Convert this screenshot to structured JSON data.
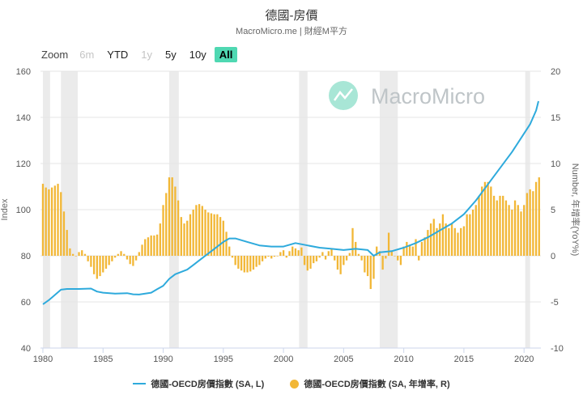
{
  "title": "德國-房價",
  "subtitle": "MacroMicro.me | 財經M平方",
  "watermark": "MacroMicro",
  "zoom": {
    "label": "Zoom",
    "buttons": [
      {
        "label": "6m",
        "state": "disabled"
      },
      {
        "label": "YTD",
        "state": "enabled"
      },
      {
        "label": "1y",
        "state": "disabled"
      },
      {
        "label": "5y",
        "state": "enabled"
      },
      {
        "label": "10y",
        "state": "enabled"
      },
      {
        "label": "All",
        "state": "active"
      }
    ]
  },
  "legend": {
    "line_label": "德國-OECD房價指數 (SA, L)",
    "bar_label": "德國-OECD房價指數 (SA, 年增率, R)"
  },
  "colors": {
    "line": "#2eaadc",
    "bars": "#f2b736",
    "band": "#ebebeb"
  },
  "chart_data": {
    "type": "bar+line",
    "x_axis": {
      "range": [
        1979.8,
        2021.4
      ],
      "ticks": [
        "1980",
        "1985",
        "1990",
        "1995",
        "2000",
        "2005",
        "2010",
        "2015",
        "2020"
      ]
    },
    "y_left": {
      "title": "Index",
      "range": [
        40,
        160
      ],
      "ticks": [
        40,
        60,
        80,
        100,
        120,
        140,
        160
      ]
    },
    "y_right": {
      "title": "Number, 年增率(YoY%)",
      "range": [
        -10,
        20
      ],
      "ticks": [
        -10,
        -5,
        0,
        5,
        10,
        15,
        20
      ]
    },
    "recession_bands": [
      [
        1980.0,
        1980.6
      ],
      [
        1981.5,
        1982.9
      ],
      [
        1990.5,
        1991.3
      ],
      [
        2001.3,
        2002.0
      ],
      [
        2008.0,
        2009.5
      ],
      [
        2020.1,
        2020.5
      ]
    ],
    "line_series": {
      "name": "德國-OECD房價指數 (SA, L)",
      "points": [
        [
          1980.0,
          59.0
        ],
        [
          1980.5,
          60.8
        ],
        [
          1981.0,
          63.0
        ],
        [
          1981.5,
          65.3
        ],
        [
          1982.0,
          65.6
        ],
        [
          1983.0,
          65.6
        ],
        [
          1984.0,
          65.8
        ],
        [
          1984.5,
          64.5
        ],
        [
          1985.0,
          64.0
        ],
        [
          1986.0,
          63.6
        ],
        [
          1987.0,
          63.8
        ],
        [
          1987.5,
          63.3
        ],
        [
          1988.0,
          63.2
        ],
        [
          1989.0,
          64.0
        ],
        [
          1989.5,
          65.5
        ],
        [
          1990.0,
          67.0
        ],
        [
          1990.5,
          70.0
        ],
        [
          1991.0,
          72.0
        ],
        [
          1992.0,
          74.0
        ],
        [
          1992.5,
          76.0
        ],
        [
          1993.0,
          78.0
        ],
        [
          1994.0,
          82.0
        ],
        [
          1995.0,
          86.0
        ],
        [
          1995.5,
          87.5
        ],
        [
          1996.0,
          87.5
        ],
        [
          1997.0,
          86.0
        ],
        [
          1998.0,
          84.5
        ],
        [
          1999.0,
          84.0
        ],
        [
          2000.0,
          84.0
        ],
        [
          2001.0,
          85.5
        ],
        [
          2002.0,
          84.5
        ],
        [
          2003.0,
          83.5
        ],
        [
          2004.0,
          83.0
        ],
        [
          2005.0,
          82.5
        ],
        [
          2006.0,
          83.0
        ],
        [
          2007.0,
          82.5
        ],
        [
          2007.5,
          80.0
        ],
        [
          2008.0,
          81.5
        ],
        [
          2009.0,
          82.0
        ],
        [
          2010.0,
          83.5
        ],
        [
          2011.0,
          85.5
        ],
        [
          2012.0,
          88.0
        ],
        [
          2013.0,
          91.0
        ],
        [
          2014.0,
          94.0
        ],
        [
          2015.0,
          98.0
        ],
        [
          2016.0,
          104.0
        ],
        [
          2017.0,
          111.0
        ],
        [
          2018.0,
          118.0
        ],
        [
          2019.0,
          125.0
        ],
        [
          2020.0,
          133.0
        ],
        [
          2020.5,
          137.0
        ],
        [
          2021.0,
          143.0
        ],
        [
          2021.2,
          147.0
        ]
      ]
    },
    "bar_series": {
      "name": "德國-OECD房價指數 (SA, 年增率, R)",
      "points": [
        [
          1980.0,
          7.8
        ],
        [
          1980.25,
          7.4
        ],
        [
          1980.5,
          7.2
        ],
        [
          1980.75,
          7.4
        ],
        [
          1981.0,
          7.6
        ],
        [
          1981.25,
          7.8
        ],
        [
          1981.5,
          6.9
        ],
        [
          1981.75,
          4.8
        ],
        [
          1982.0,
          2.8
        ],
        [
          1982.25,
          0.8
        ],
        [
          1982.5,
          0.2
        ],
        [
          1982.75,
          0.0
        ],
        [
          1983.0,
          0.4
        ],
        [
          1983.25,
          0.6
        ],
        [
          1983.5,
          0.2
        ],
        [
          1983.75,
          -0.6
        ],
        [
          1984.0,
          -1.2
        ],
        [
          1984.25,
          -2.0
        ],
        [
          1984.5,
          -2.5
        ],
        [
          1984.75,
          -2.2
        ],
        [
          1985.0,
          -1.8
        ],
        [
          1985.25,
          -1.4
        ],
        [
          1985.5,
          -1.0
        ],
        [
          1985.75,
          -0.6
        ],
        [
          1986.0,
          -0.2
        ],
        [
          1986.25,
          0.2
        ],
        [
          1986.5,
          0.5
        ],
        [
          1986.75,
          0.2
        ],
        [
          1987.0,
          -0.4
        ],
        [
          1987.25,
          -0.9
        ],
        [
          1987.5,
          -1.1
        ],
        [
          1987.75,
          -0.5
        ],
        [
          1988.0,
          0.4
        ],
        [
          1988.25,
          1.2
        ],
        [
          1988.5,
          1.8
        ],
        [
          1988.75,
          2.0
        ],
        [
          1989.0,
          2.2
        ],
        [
          1989.25,
          2.2
        ],
        [
          1989.5,
          2.3
        ],
        [
          1989.75,
          3.5
        ],
        [
          1990.0,
          5.5
        ],
        [
          1990.25,
          6.8
        ],
        [
          1990.5,
          8.5
        ],
        [
          1990.75,
          8.5
        ],
        [
          1991.0,
          7.5
        ],
        [
          1991.25,
          6.0
        ],
        [
          1991.5,
          4.2
        ],
        [
          1991.75,
          3.5
        ],
        [
          1992.0,
          3.8
        ],
        [
          1992.25,
          4.5
        ],
        [
          1992.5,
          5.0
        ],
        [
          1992.75,
          5.5
        ],
        [
          1993.0,
          5.6
        ],
        [
          1993.25,
          5.4
        ],
        [
          1993.5,
          5.0
        ],
        [
          1993.75,
          4.7
        ],
        [
          1994.0,
          4.6
        ],
        [
          1994.25,
          4.5
        ],
        [
          1994.5,
          4.5
        ],
        [
          1994.75,
          4.2
        ],
        [
          1995.0,
          3.8
        ],
        [
          1995.25,
          2.6
        ],
        [
          1995.5,
          1.0
        ],
        [
          1995.75,
          -0.2
        ],
        [
          1996.0,
          -1.0
        ],
        [
          1996.25,
          -1.4
        ],
        [
          1996.5,
          -1.6
        ],
        [
          1996.75,
          -1.8
        ],
        [
          1997.0,
          -1.8
        ],
        [
          1997.25,
          -1.7
        ],
        [
          1997.5,
          -1.5
        ],
        [
          1997.75,
          -1.2
        ],
        [
          1998.0,
          -1.0
        ],
        [
          1998.25,
          -0.6
        ],
        [
          1998.5,
          -0.3
        ],
        [
          1998.75,
          -0.1
        ],
        [
          1999.0,
          -0.3
        ],
        [
          1999.25,
          -0.1
        ],
        [
          1999.5,
          0.0
        ],
        [
          1999.75,
          0.4
        ],
        [
          2000.0,
          0.6
        ],
        [
          2000.25,
          -0.2
        ],
        [
          2000.5,
          0.5
        ],
        [
          2000.75,
          1.0
        ],
        [
          2001.0,
          0.8
        ],
        [
          2001.25,
          0.6
        ],
        [
          2001.5,
          0.9
        ],
        [
          2001.75,
          -1.0
        ],
        [
          2002.0,
          -1.6
        ],
        [
          2002.25,
          -1.4
        ],
        [
          2002.5,
          -0.8
        ],
        [
          2002.75,
          -0.6
        ],
        [
          2003.0,
          -0.2
        ],
        [
          2003.25,
          0.4
        ],
        [
          2003.5,
          -0.4
        ],
        [
          2003.75,
          0.5
        ],
        [
          2004.0,
          0.8
        ],
        [
          2004.25,
          -0.5
        ],
        [
          2004.5,
          -1.5
        ],
        [
          2004.75,
          -2.0
        ],
        [
          2005.0,
          -1.0
        ],
        [
          2005.25,
          -0.5
        ],
        [
          2005.5,
          0.3
        ],
        [
          2005.75,
          3.0
        ],
        [
          2006.0,
          1.5
        ],
        [
          2006.25,
          0.2
        ],
        [
          2006.5,
          -0.5
        ],
        [
          2006.75,
          -1.8
        ],
        [
          2007.0,
          -2.2
        ],
        [
          2007.25,
          -3.6
        ],
        [
          2007.5,
          -2.5
        ],
        [
          2007.75,
          1.0
        ],
        [
          2008.0,
          0.5
        ],
        [
          2008.25,
          -1.5
        ],
        [
          2008.5,
          -0.3
        ],
        [
          2008.75,
          2.5
        ],
        [
          2009.0,
          0.5
        ],
        [
          2009.25,
          0.0
        ],
        [
          2009.5,
          -0.5
        ],
        [
          2009.75,
          -1.0
        ],
        [
          2010.0,
          1.0
        ],
        [
          2010.25,
          1.5
        ],
        [
          2010.5,
          1.2
        ],
        [
          2010.75,
          1.0
        ],
        [
          2011.0,
          1.8
        ],
        [
          2011.25,
          -0.5
        ],
        [
          2011.5,
          1.5
        ],
        [
          2011.75,
          2.0
        ],
        [
          2012.0,
          2.8
        ],
        [
          2012.25,
          3.5
        ],
        [
          2012.5,
          4.0
        ],
        [
          2012.75,
          3.0
        ],
        [
          2013.0,
          3.5
        ],
        [
          2013.25,
          4.5
        ],
        [
          2013.5,
          3.5
        ],
        [
          2013.75,
          3.0
        ],
        [
          2014.0,
          3.5
        ],
        [
          2014.25,
          3.0
        ],
        [
          2014.5,
          2.5
        ],
        [
          2014.75,
          3.0
        ],
        [
          2015.0,
          3.2
        ],
        [
          2015.25,
          4.5
        ],
        [
          2015.5,
          4.5
        ],
        [
          2015.75,
          5.0
        ],
        [
          2016.0,
          5.5
        ],
        [
          2016.25,
          6.5
        ],
        [
          2016.5,
          7.5
        ],
        [
          2016.75,
          8.0
        ],
        [
          2017.0,
          8.0
        ],
        [
          2017.25,
          7.5
        ],
        [
          2017.5,
          6.5
        ],
        [
          2017.75,
          6.0
        ],
        [
          2018.0,
          6.5
        ],
        [
          2018.25,
          6.5
        ],
        [
          2018.5,
          6.0
        ],
        [
          2018.75,
          5.5
        ],
        [
          2019.0,
          5.0
        ],
        [
          2019.25,
          6.0
        ],
        [
          2019.5,
          5.5
        ],
        [
          2019.75,
          4.8
        ],
        [
          2020.0,
          5.5
        ],
        [
          2020.25,
          6.8
        ],
        [
          2020.5,
          7.2
        ],
        [
          2020.75,
          7.0
        ],
        [
          2021.0,
          8.0
        ],
        [
          2021.25,
          8.5
        ]
      ]
    }
  }
}
